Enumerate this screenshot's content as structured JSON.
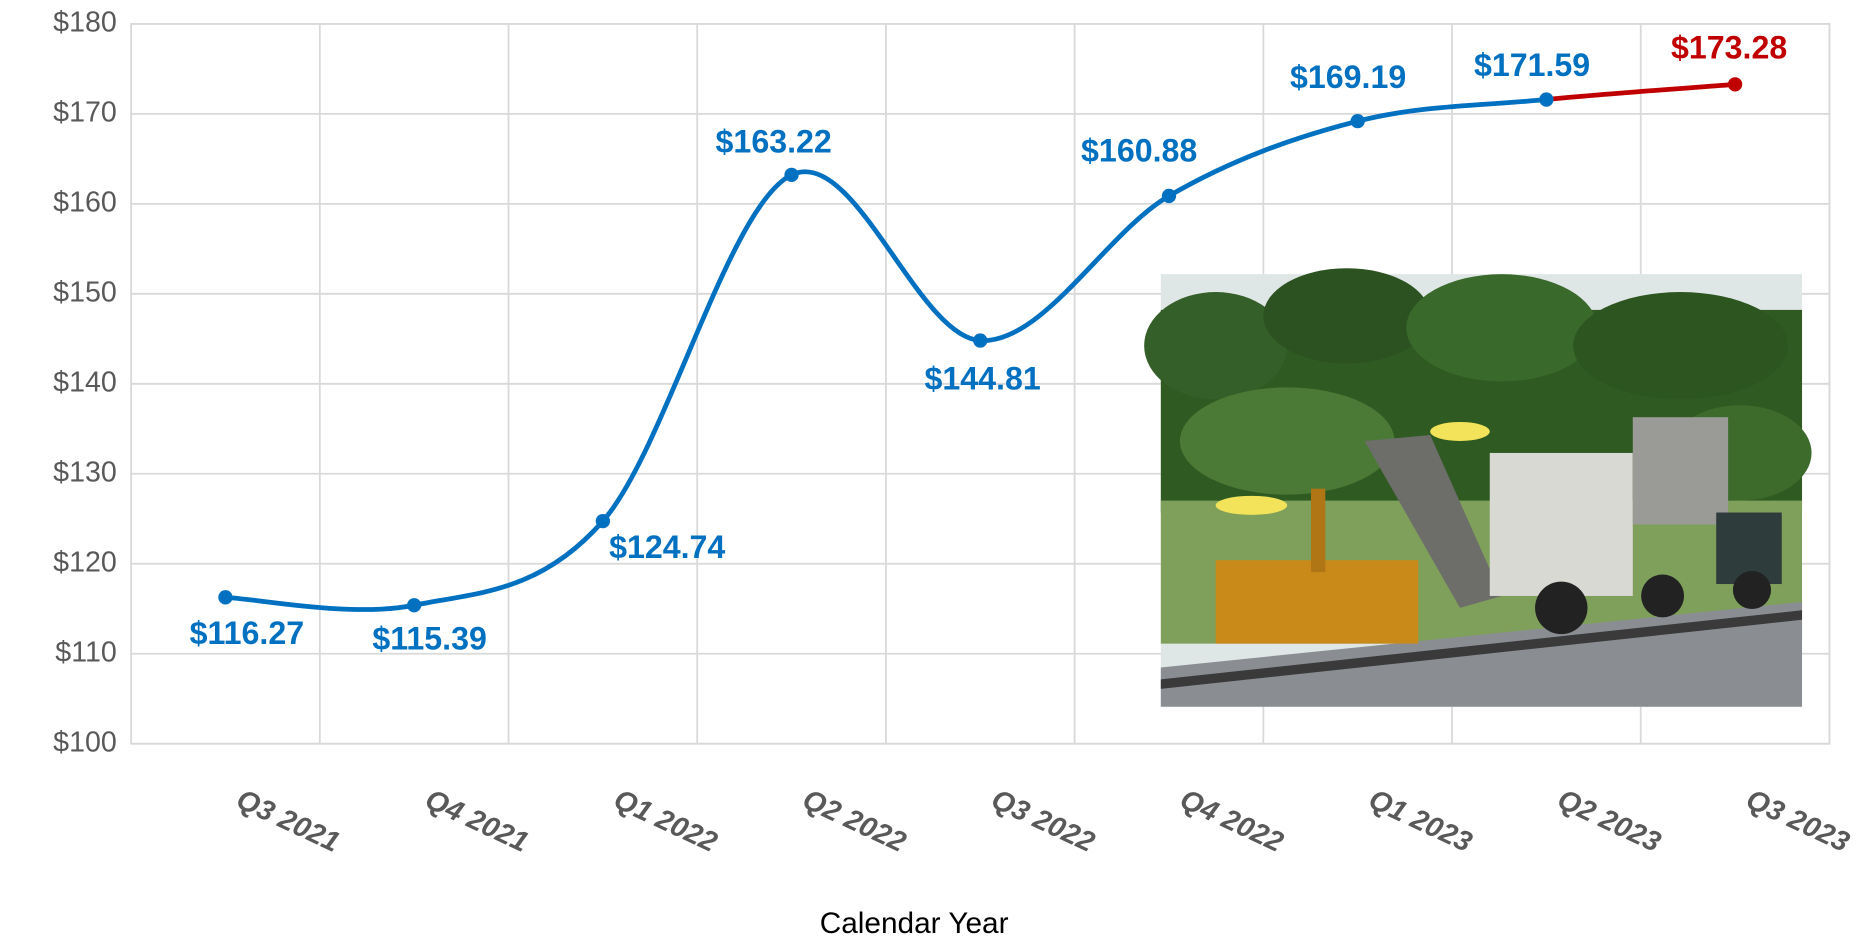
{
  "chart_data": {
    "type": "line",
    "x_label": "Calendar Year",
    "categories": [
      "Q3 2021",
      "Q4 2021",
      "Q1 2022",
      "Q2 2022",
      "Q3 2022",
      "Q4 2022",
      "Q1 2023",
      "Q2 2023",
      "Q3 2023"
    ],
    "values": [
      116.27,
      115.39,
      124.74,
      163.22,
      144.81,
      160.88,
      169.19,
      171.59,
      173.28
    ],
    "value_labels": [
      "$116.27",
      "$115.39",
      "$124.74",
      "$163.22",
      "$144.81",
      "$160.88",
      "$169.19",
      "$171.59",
      "$173.28"
    ],
    "colors": [
      "#0070c0",
      "#0070c0",
      "#0070c0",
      "#0070c0",
      "#0070c0",
      "#0070c0",
      "#0070c0",
      "#0070c0",
      "#c00000"
    ],
    "ylim": [
      100,
      180
    ],
    "yticks": [
      {
        "value": 100,
        "label": "$100"
      },
      {
        "value": 110,
        "label": "$110"
      },
      {
        "value": 120,
        "label": "$120"
      },
      {
        "value": 130,
        "label": "$130"
      },
      {
        "value": 140,
        "label": "$140"
      },
      {
        "value": 150,
        "label": "$150"
      },
      {
        "value": 160,
        "label": "$160"
      },
      {
        "value": 170,
        "label": "$170"
      },
      {
        "value": 180,
        "label": "$180"
      }
    ],
    "grid": true,
    "smooth": true
  }
}
